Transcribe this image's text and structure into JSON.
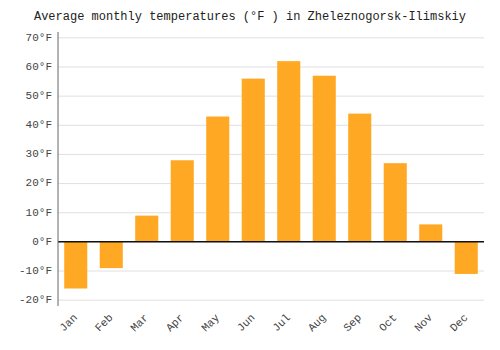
{
  "chart_data": {
    "type": "bar",
    "title": "Average monthly temperatures (°F ) in Zheleznogorsk-Ilimskiy",
    "categories": [
      "Jan",
      "Feb",
      "Mar",
      "Apr",
      "May",
      "Jun",
      "Jul",
      "Aug",
      "Sep",
      "Oct",
      "Nov",
      "Dec"
    ],
    "values": [
      -16,
      -9,
      9,
      28,
      43,
      56,
      62,
      57,
      44,
      27,
      6,
      -11
    ],
    "color": "#FFA824",
    "ylim": [
      -22,
      72
    ],
    "yticks": [
      {
        "value": -20,
        "label": "-20°F"
      },
      {
        "value": -10,
        "label": "-10°F"
      },
      {
        "value": 0,
        "label": "0°F"
      },
      {
        "value": 10,
        "label": "10°F"
      },
      {
        "value": 20,
        "label": "20°F"
      },
      {
        "value": 30,
        "label": "30°F"
      },
      {
        "value": 40,
        "label": "40°F"
      },
      {
        "value": 50,
        "label": "50°F"
      },
      {
        "value": 60,
        "label": "60°F"
      },
      {
        "value": 70,
        "label": "70°F"
      }
    ],
    "grid": true
  }
}
